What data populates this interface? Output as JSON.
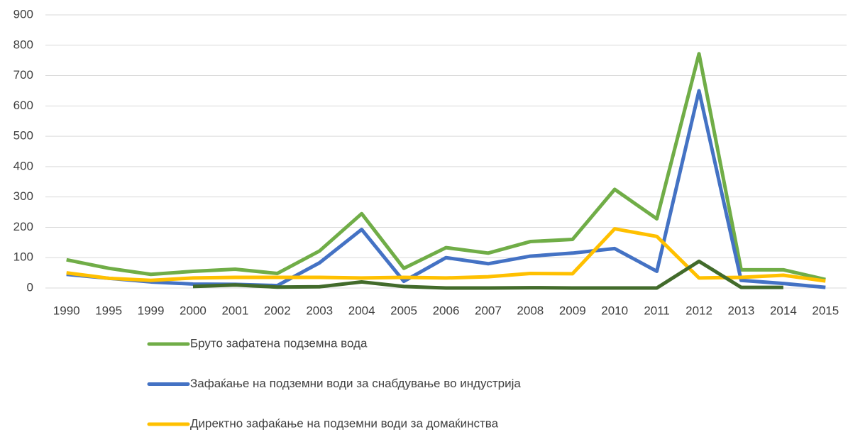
{
  "chart_data": {
    "type": "line",
    "categories": [
      "1990",
      "1995",
      "1999",
      "2000",
      "2001",
      "2002",
      "2003",
      "2004",
      "2005",
      "2006",
      "2007",
      "2008",
      "2009",
      "2010",
      "2011",
      "2012",
      "2013",
      "2014",
      "2015"
    ],
    "series": [
      {
        "name": "Бруто зафатена подземна вода",
        "color": "#70ad47",
        "values": [
          93,
          65,
          45,
          55,
          62,
          48,
          122,
          245,
          65,
          133,
          115,
          153,
          160,
          325,
          228,
          772,
          60,
          60,
          28
        ]
      },
      {
        "name": "Зафаќање на подземни води за снабдување во индустрија",
        "color": "#4472c4",
        "values": [
          45,
          32,
          20,
          13,
          12,
          8,
          83,
          193,
          22,
          100,
          80,
          105,
          115,
          130,
          55,
          650,
          25,
          15,
          2
        ]
      },
      {
        "name": "Директно зафаќање на подземни води за домаќинства",
        "color": "#ffc000",
        "values": [
          50,
          32,
          25,
          33,
          35,
          35,
          35,
          33,
          35,
          33,
          37,
          48,
          47,
          195,
          170,
          33,
          35,
          42,
          23
        ]
      },
      {
        "color": "#426b2b",
        "values": [
          null,
          null,
          null,
          5,
          10,
          3,
          4,
          20,
          5,
          0,
          0,
          1,
          0,
          0,
          0,
          88,
          2,
          2,
          null
        ]
      }
    ],
    "ylim": [
      0,
      900
    ],
    "yticks": [
      0,
      100,
      200,
      300,
      400,
      500,
      600,
      700,
      800,
      900
    ],
    "grid": true
  }
}
